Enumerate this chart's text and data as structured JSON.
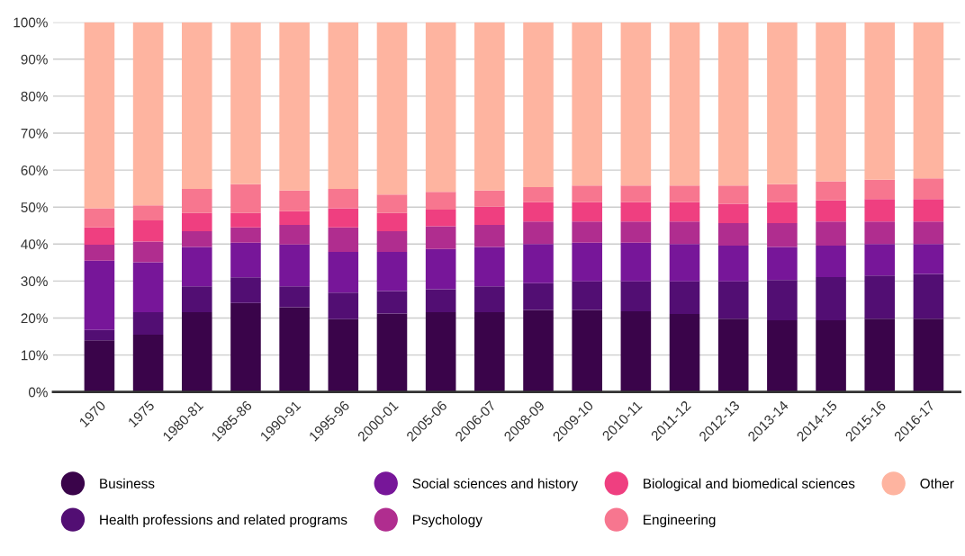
{
  "chart_data": {
    "type": "bar",
    "stacked": true,
    "categories": [
      "1970",
      "1975",
      "1980-81",
      "1985-86",
      "1990-91",
      "1995-96",
      "2000-01",
      "2005-06",
      "2006-07",
      "2008-09",
      "2009-10",
      "2010-11",
      "2011-12",
      "2012-13",
      "2013-14",
      "2014-15",
      "2015-16",
      "2016-17"
    ],
    "series": [
      {
        "name": "Business",
        "color": "#3a044a",
        "values": [
          14.0,
          15.5,
          21.6,
          24.1,
          22.9,
          19.7,
          21.2,
          21.6,
          21.6,
          22.2,
          22.2,
          21.8,
          21.1,
          19.8,
          19.4,
          19.4,
          19.8,
          19.8
        ]
      },
      {
        "name": "Health professions and related programs",
        "color": "#520e73",
        "values": [
          2.8,
          6.1,
          7.0,
          6.9,
          5.7,
          7.2,
          6.1,
          6.2,
          7.0,
          7.2,
          7.7,
          8.1,
          8.8,
          10.1,
          10.9,
          11.7,
          11.7,
          12.1
        ]
      },
      {
        "name": "Social sciences and history",
        "color": "#771699",
        "values": [
          18.7,
          13.5,
          10.6,
          9.4,
          11.3,
          11.0,
          10.6,
          10.9,
          10.6,
          10.6,
          10.5,
          10.5,
          10.1,
          9.7,
          8.9,
          8.5,
          8.5,
          8.1
        ]
      },
      {
        "name": "Psychology",
        "color": "#b02d8f",
        "values": [
          4.3,
          5.6,
          4.3,
          4.1,
          5.3,
          6.6,
          5.6,
          6.1,
          6.0,
          6.1,
          5.7,
          5.7,
          6.1,
          6.1,
          6.5,
          6.5,
          6.1,
          6.1
        ]
      },
      {
        "name": "Biological and biomedical sciences",
        "color": "#ef3f80",
        "values": [
          4.7,
          5.7,
          4.9,
          3.9,
          3.7,
          5.2,
          4.9,
          4.5,
          4.9,
          5.2,
          5.2,
          5.2,
          5.2,
          5.2,
          5.6,
          5.7,
          6.1,
          6.1
        ]
      },
      {
        "name": "Engineering",
        "color": "#f7768f",
        "values": [
          5.2,
          4.1,
          6.5,
          7.8,
          5.6,
          5.2,
          5.0,
          4.8,
          4.4,
          4.1,
          4.5,
          4.5,
          4.5,
          4.9,
          4.9,
          5.2,
          5.2,
          5.6
        ]
      },
      {
        "name": "Other",
        "color": "#feb4a0",
        "values": [
          50.3,
          49.5,
          45.1,
          43.8,
          45.5,
          45.1,
          46.6,
          45.9,
          45.5,
          44.6,
          44.2,
          44.2,
          44.2,
          44.2,
          43.8,
          43.0,
          42.6,
          42.2
        ]
      }
    ],
    "ylim": [
      0,
      100
    ],
    "yticks": [
      {
        "value": 0,
        "label": "0%"
      },
      {
        "value": 10,
        "label": "10%"
      },
      {
        "value": 20,
        "label": "20%"
      },
      {
        "value": 30,
        "label": "30%"
      },
      {
        "value": 40,
        "label": "40%"
      },
      {
        "value": 50,
        "label": "50%"
      },
      {
        "value": 60,
        "label": "60%"
      },
      {
        "value": 70,
        "label": "70%"
      },
      {
        "value": 80,
        "label": "80%"
      },
      {
        "value": 90,
        "label": "90%"
      },
      {
        "value": 100,
        "label": "100%"
      }
    ],
    "grid": "y",
    "legend": "bottom"
  }
}
